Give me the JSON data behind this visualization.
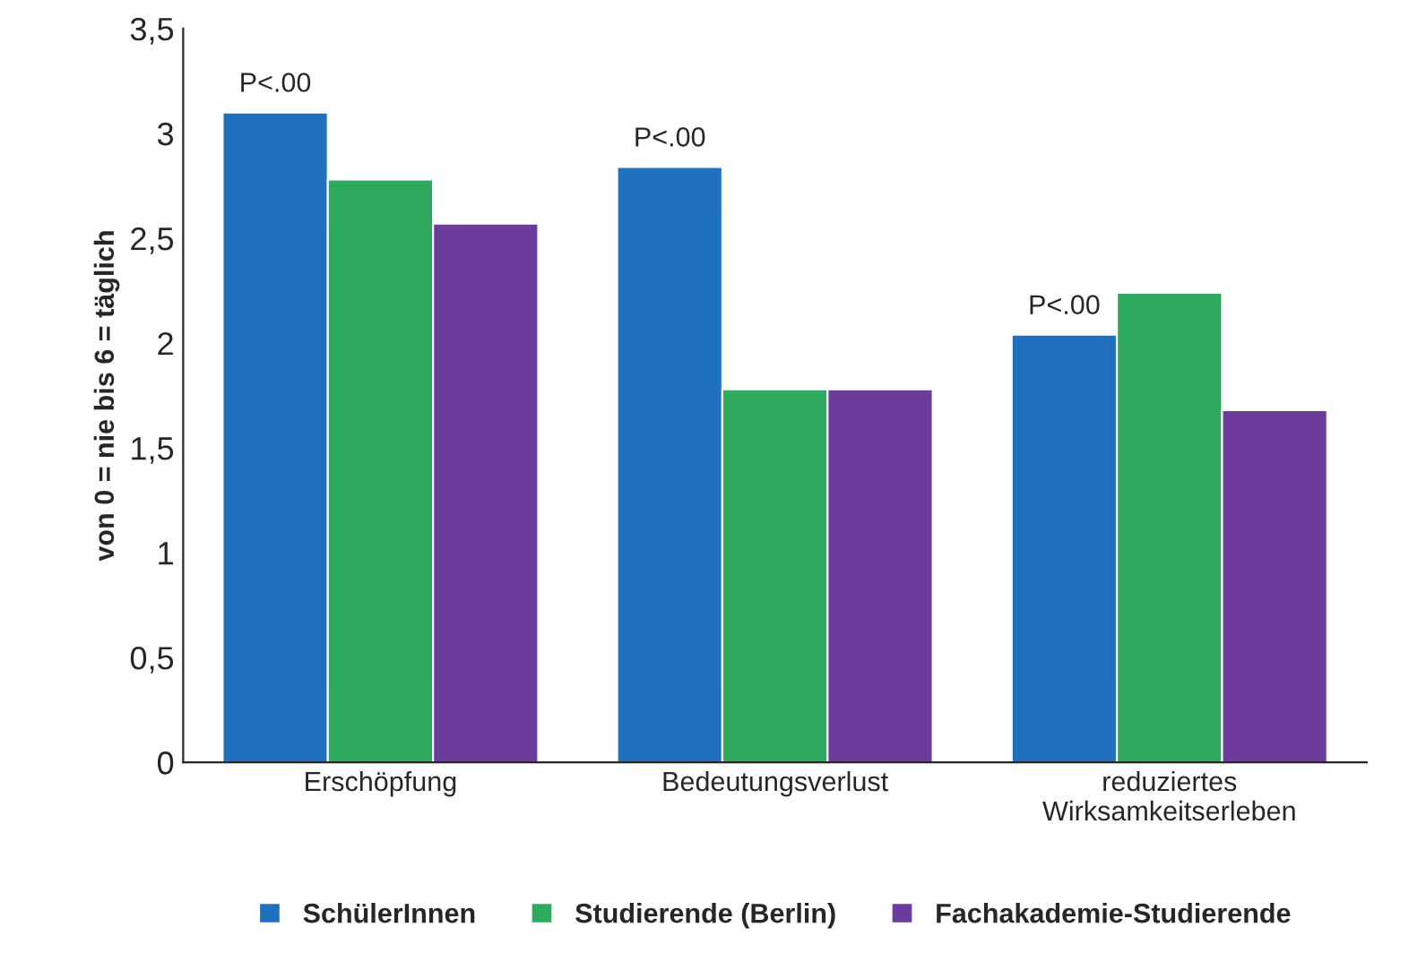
{
  "chart_data": {
    "type": "bar",
    "ylabel": "von 0 = nie bis 6 = täglich",
    "categories": [
      "Erschöpfung",
      "Bedeutungsverlust",
      "reduziertes\nWirksamkeitserleben"
    ],
    "series": [
      {
        "name": "SchülerInnen",
        "color": "#2070c0",
        "values": [
          3.1,
          2.84,
          2.04
        ]
      },
      {
        "name": "Studierende (Berlin)",
        "color": "#2eaa5e",
        "values": [
          2.78,
          1.78,
          2.24
        ]
      },
      {
        "name": "Fachakademie-Studierende",
        "color": "#6b3c9c",
        "values": [
          2.57,
          1.78,
          1.68
        ]
      }
    ],
    "ylim": [
      0,
      3.5
    ],
    "yticks": [
      0,
      {
        "value": 0.5,
        "label": "0,5"
      },
      1,
      {
        "value": 1.5,
        "label": "1,5"
      },
      2,
      {
        "value": 2.5,
        "label": "2,5"
      },
      3,
      {
        "value": 3.5,
        "label": "3,5"
      }
    ],
    "annotations": [
      "P<.00",
      "P<.00",
      "P<.00"
    ],
    "grid": false,
    "legend": "bottom"
  }
}
